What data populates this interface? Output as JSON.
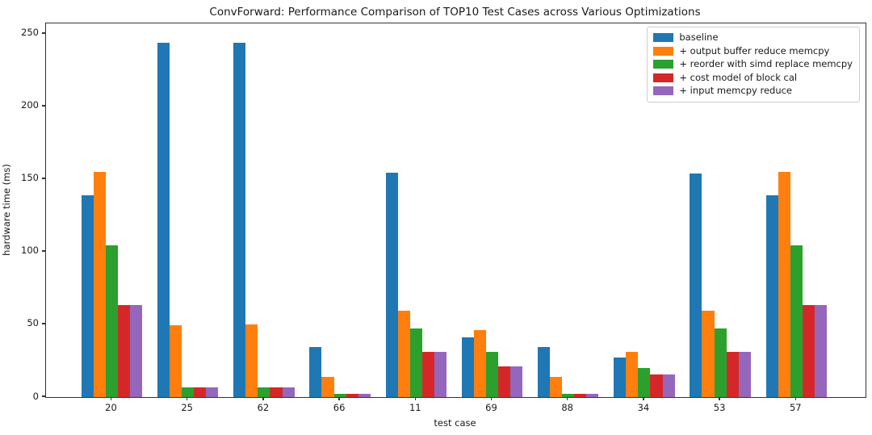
{
  "chart_data": {
    "type": "bar",
    "title": "ConvForward: Performance Comparison of TOP10 Test Cases across Various Optimizations",
    "xlabel": "test case",
    "ylabel": "hardware time (ms)",
    "categories": [
      "20",
      "25",
      "62",
      "66",
      "11",
      "69",
      "88",
      "34",
      "53",
      "57"
    ],
    "series": [
      {
        "name": "baseline",
        "color": "#1f77b4",
        "values": [
          139,
          244,
          244,
          34.5,
          154.5,
          41,
          34.5,
          27.5,
          154,
          139
        ]
      },
      {
        "name": "+ output buffer reduce memcpy",
        "color": "#ff7f0e",
        "values": [
          155,
          49.5,
          50,
          14,
          59.5,
          46,
          14,
          31,
          59.5,
          155
        ]
      },
      {
        "name": "+ reorder with simd replace memcpy",
        "color": "#2ca02c",
        "values": [
          104.5,
          6.5,
          6.5,
          2,
          47.5,
          31,
          2,
          20,
          47.5,
          104.5
        ]
      },
      {
        "name": "+ cost model of block cal",
        "color": "#d62728",
        "values": [
          63.5,
          6.5,
          6.5,
          2.5,
          31,
          21,
          2.5,
          15.5,
          31,
          63.5
        ]
      },
      {
        "name": "+ input memcpy reduce",
        "color": "#9467bd",
        "values": [
          63.5,
          6.5,
          6.5,
          2,
          31,
          21,
          2,
          15.5,
          31,
          63.5
        ]
      }
    ],
    "yticks": [
      0,
      50,
      100,
      150,
      200,
      250
    ],
    "ylim": [
      0,
      257.2
    ],
    "grid": false,
    "legend_position": "upper right"
  }
}
